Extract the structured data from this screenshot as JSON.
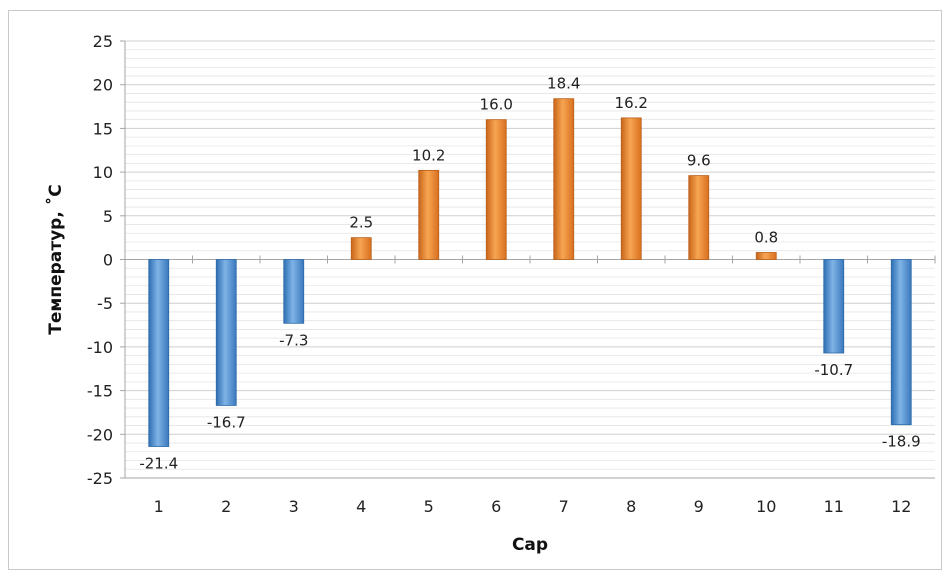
{
  "chart_data": {
    "type": "bar",
    "categories": [
      "1",
      "2",
      "3",
      "4",
      "5",
      "6",
      "7",
      "8",
      "9",
      "10",
      "11",
      "12"
    ],
    "values": [
      -21.4,
      -16.7,
      -7.3,
      2.5,
      10.2,
      16.0,
      18.4,
      16.2,
      9.6,
      0.8,
      -10.7,
      -18.9
    ],
    "data_labels": [
      "-21.4",
      "-16.7",
      "-7.3",
      "2.5",
      "10.2",
      "16.0",
      "18.4",
      "16.2",
      "9.6",
      "0.8",
      "-10.7",
      "-18.9"
    ],
    "xlabel": "Сар",
    "ylabel": "Температур, ˚С",
    "ylim": [
      -25,
      25
    ],
    "y_ticks": [
      25,
      20,
      15,
      10,
      5,
      0,
      -5,
      -10,
      -15,
      -20,
      -25
    ],
    "grid": true,
    "legend": "none",
    "colors": {
      "positive": "#f08a2c",
      "negative": "#4f8fd0",
      "grid": "#d9d9d9"
    }
  }
}
